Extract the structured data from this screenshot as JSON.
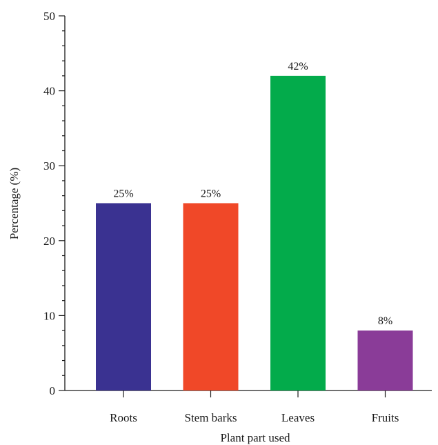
{
  "chart_data": {
    "type": "bar",
    "categories": [
      "Roots",
      "Stem barks",
      "Leaves",
      "Fruits"
    ],
    "values": [
      25,
      25,
      42,
      8
    ],
    "data_labels": [
      "25%",
      "25%",
      "42%",
      "8%"
    ],
    "colors": [
      "#3a3291",
      "#f04828",
      "#03ab4b",
      "#8a3c98"
    ],
    "xlabel": "Plant part used",
    "ylabel": "Percentage (%)",
    "ylim": [
      0,
      50
    ],
    "yticks": [
      0,
      10,
      20,
      30,
      40,
      50
    ],
    "y_minor_step": 2,
    "grid": false,
    "legend": "none"
  }
}
